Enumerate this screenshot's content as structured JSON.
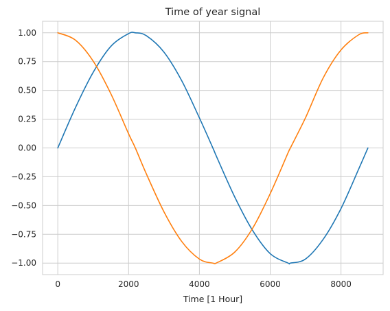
{
  "chart_data": {
    "type": "line",
    "title": "Time of year signal",
    "xlabel": "Time [1 Hour]",
    "ylabel": "",
    "xlim": [
      -430,
      9190
    ],
    "ylim": [
      -1.1,
      1.1
    ],
    "grid": true,
    "x_ticks": [
      0,
      2000,
      4000,
      6000,
      8000
    ],
    "x_tick_labels": [
      "0",
      "2000",
      "4000",
      "6000",
      "8000"
    ],
    "y_ticks": [
      1.0,
      0.75,
      0.5,
      0.25,
      0.0,
      -0.25,
      -0.5,
      -0.75,
      -1.0
    ],
    "y_tick_labels": [
      "1.00",
      "0.75",
      "0.50",
      "0.25",
      "0.00",
      "−0.25",
      "−0.50",
      "−0.75",
      "−1.00"
    ],
    "series": [
      {
        "color": "#1f77b4",
        "x": [
          0,
          500,
          1000,
          1500,
          2000,
          2190,
          2500,
          3000,
          3500,
          4000,
          4380,
          4500,
          5000,
          5500,
          6000,
          6500,
          6570,
          7000,
          7500,
          8000,
          8500,
          8760
        ],
        "y": [
          0.0,
          0.351,
          0.657,
          0.883,
          0.993,
          1.0,
          0.975,
          0.832,
          0.584,
          0.261,
          0.0,
          -0.086,
          -0.427,
          -0.715,
          -0.918,
          -0.999,
          -1.0,
          -0.964,
          -0.792,
          -0.526,
          -0.183,
          0.0
        ]
      },
      {
        "color": "#ff7f0e",
        "x": [
          0,
          500,
          1000,
          1500,
          2000,
          2190,
          2500,
          3000,
          3500,
          4000,
          4380,
          4500,
          5000,
          5500,
          6000,
          6500,
          6570,
          7000,
          7500,
          8000,
          8500,
          8760
        ],
        "y": [
          1.0,
          0.936,
          0.754,
          0.47,
          0.123,
          0.0,
          -0.224,
          -0.555,
          -0.812,
          -0.965,
          -1.0,
          -0.996,
          -0.904,
          -0.699,
          -0.397,
          -0.045,
          0.0,
          0.264,
          0.61,
          0.851,
          0.983,
          1.0
        ]
      }
    ]
  }
}
